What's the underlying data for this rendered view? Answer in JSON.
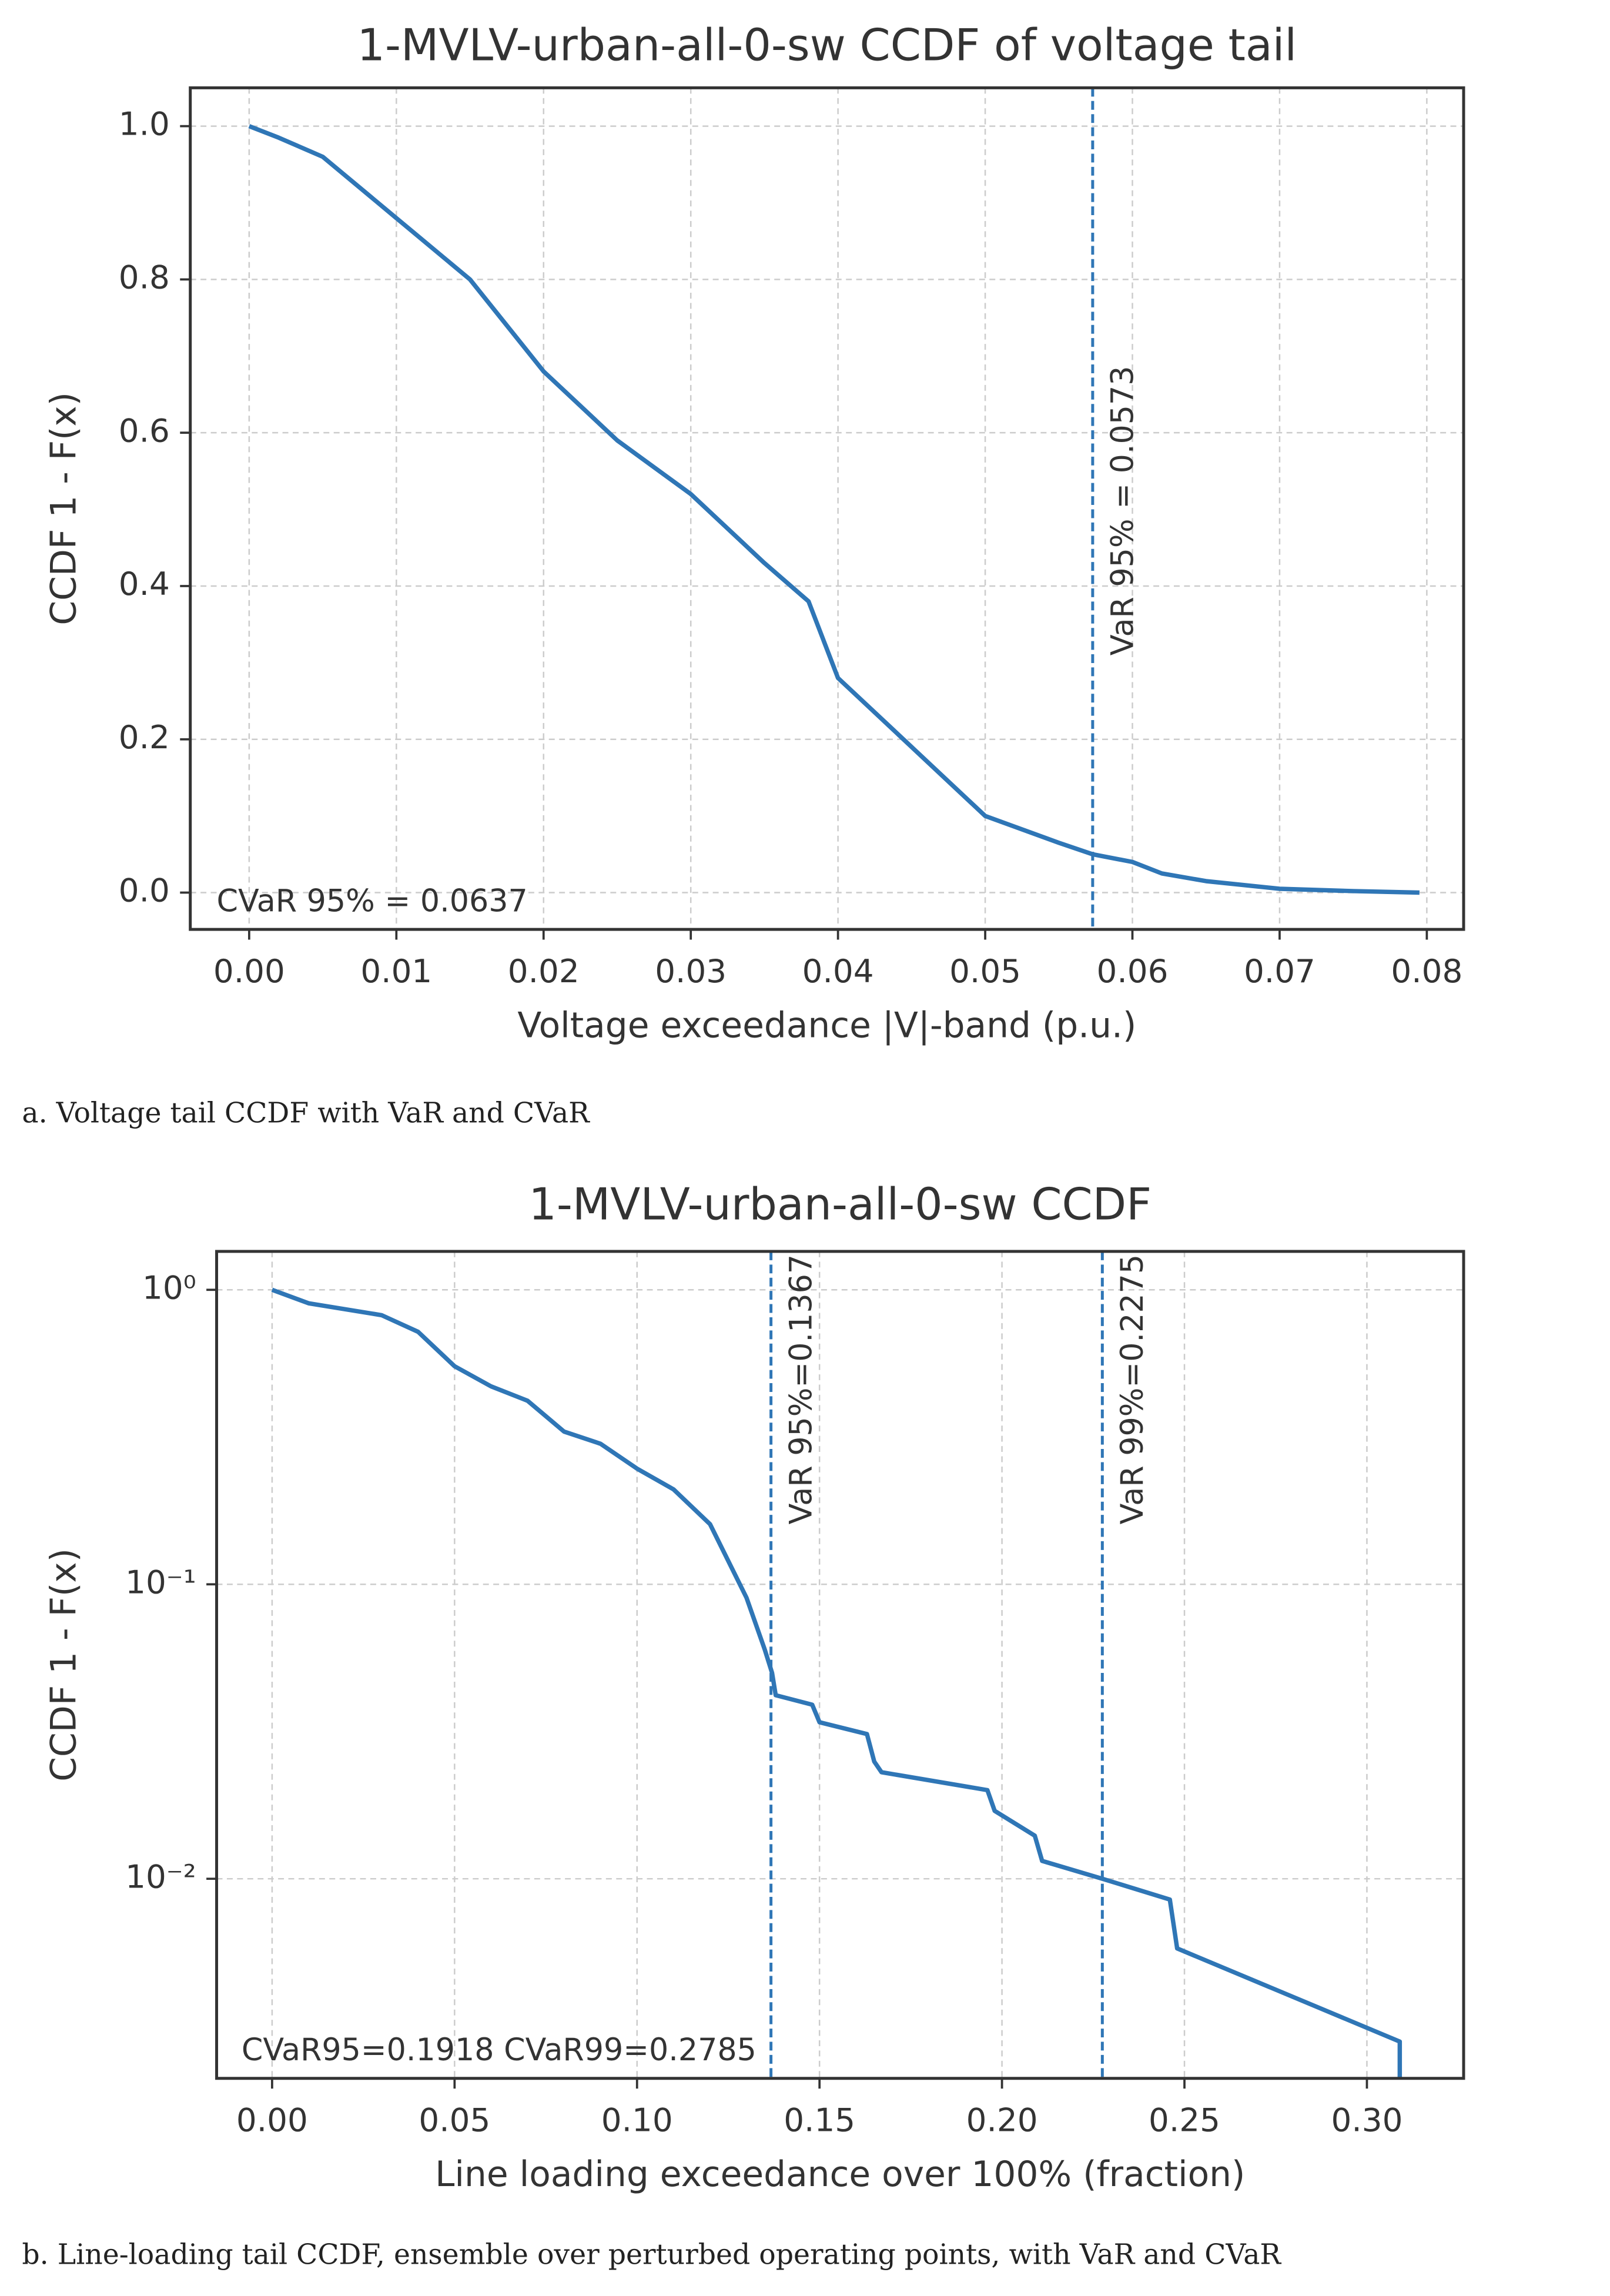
{
  "chart_data": [
    {
      "type": "line",
      "title": "1-MVLV-urban-all-0-sw  CCDF of voltage tail",
      "xlabel": "Voltage exceedance |V|-band (p.u.)",
      "ylabel": "CCDF 1 - F(x)",
      "caption": "a. Voltage tail CCDF with VaR and CVaR",
      "x": [
        0,
        0.002,
        0.005,
        0.01,
        0.015,
        0.02,
        0.025,
        0.03,
        0.035,
        0.038,
        0.04,
        0.045,
        0.05,
        0.055,
        0.0573,
        0.06,
        0.062,
        0.065,
        0.07,
        0.075,
        0.0795
      ],
      "series": [
        {
          "name": "CCDF",
          "color": "#2f76b6",
          "values": [
            1.0,
            0.985,
            0.96,
            0.88,
            0.8,
            0.68,
            0.59,
            0.52,
            0.43,
            0.38,
            0.28,
            0.19,
            0.1,
            0.065,
            0.05,
            0.04,
            0.025,
            0.015,
            0.005,
            0.002,
            0
          ]
        }
      ],
      "xlim": [
        -0.004,
        0.0825
      ],
      "ylim": [
        -0.048,
        1.05
      ],
      "xticks": [
        {
          "value": 0,
          "label": "0.00"
        },
        0.01,
        0.02,
        0.03,
        0.04,
        0.05,
        0.06,
        0.07,
        0.08
      ],
      "yticks": [
        {
          "value": 0,
          "label": "0.0"
        },
        0.2,
        0.4,
        0.6,
        0.8,
        {
          "value": 1,
          "label": "1.0"
        }
      ],
      "grid": true,
      "vlines": [
        {
          "x": 0.0573,
          "label": "VaR 95% = 0.0573"
        }
      ],
      "annotation": "CVaR 95% = 0.0637"
    },
    {
      "type": "line",
      "title": "1-MVLV-urban-all-0-sw  CCDF",
      "xlabel": "Line loading exceedance over 100% (fraction)",
      "ylabel": "CCDF 1 - F(x)",
      "caption": "b. Line-loading tail CCDF, ensemble over perturbed operating points, with VaR and CVaR",
      "yscale": "log",
      "x": [
        0,
        0.01,
        0.03,
        0.04,
        0.05,
        0.06,
        0.07,
        0.08,
        0.09,
        0.1,
        0.11,
        0.12,
        0.13,
        0.135,
        0.137,
        0.138,
        0.148,
        0.15,
        0.163,
        0.165,
        0.167,
        0.196,
        0.198,
        0.209,
        0.211,
        0.2275,
        0.246,
        0.248,
        0.309,
        0.309
      ],
      "series": [
        {
          "name": "CCDF",
          "color": "#2f76b6",
          "values": [
            1.0,
            0.9,
            0.82,
            0.72,
            0.55,
            0.47,
            0.42,
            0.33,
            0.3,
            0.247,
            0.21,
            0.16,
            0.09,
            0.06,
            0.05,
            0.042,
            0.039,
            0.034,
            0.031,
            0.025,
            0.023,
            0.02,
            0.017,
            0.014,
            0.0115,
            0.01,
            0.0085,
            0.0058,
            0.0028,
            0.0021
          ]
        }
      ],
      "xlim": [
        -0.0152,
        0.3265
      ],
      "ylim": [
        0.0021,
        1.35
      ],
      "xticks": [
        {
          "value": 0,
          "label": "0.00"
        },
        0.05,
        {
          "value": 0.1,
          "label": "0.10"
        },
        0.15,
        {
          "value": 0.2,
          "label": "0.20"
        },
        0.25,
        {
          "value": 0.3,
          "label": "0.30"
        }
      ],
      "yticks": [
        {
          "value": 0.01,
          "label": "10⁻²"
        },
        {
          "value": 0.1,
          "label": "10⁻¹"
        },
        {
          "value": 1,
          "label": "10⁰"
        }
      ],
      "grid": true,
      "vlines": [
        {
          "x": 0.1367,
          "label": "VaR 95%=0.1367"
        },
        {
          "x": 0.2275,
          "label": "VaR 99%=0.2275"
        }
      ],
      "annotation": "CVaR95=0.1918  CVaR99=0.2785"
    }
  ]
}
